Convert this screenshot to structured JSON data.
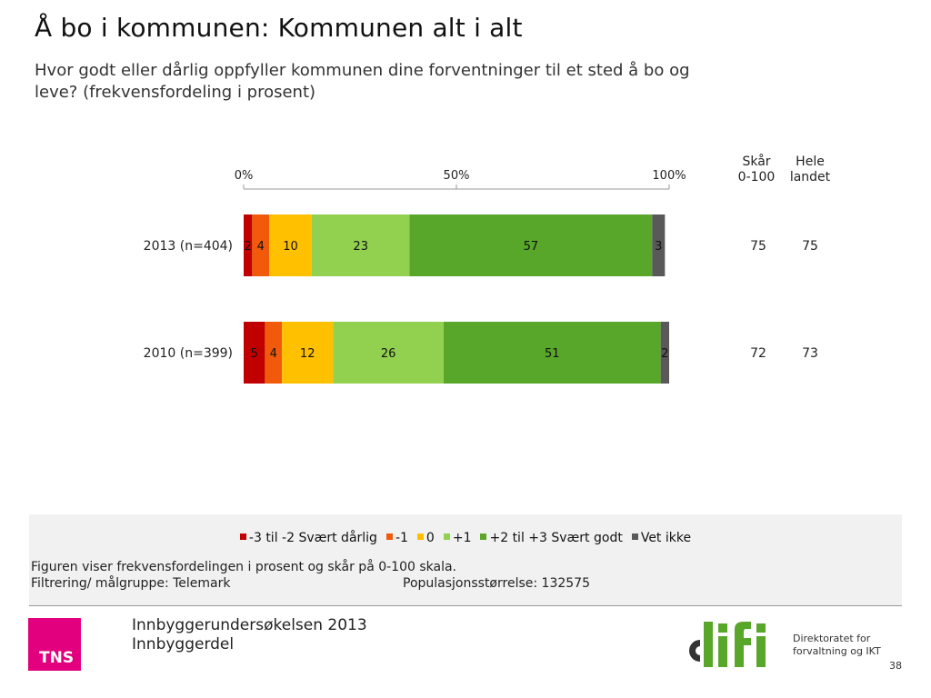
{
  "title": "Å bo i kommunen: Kommunen alt i alt",
  "subtitle": "Hvor godt eller dårlig oppfyller kommunen dine forventninger til et sted å bo og leve? (frekvensfordeling i prosent)",
  "score_header": [
    "Skår",
    "0-100"
  ],
  "national_header": [
    "Hele",
    "landet"
  ],
  "chart_data": {
    "type": "bar",
    "orientation": "horizontal",
    "stacked": true,
    "xlim": [
      0,
      100
    ],
    "ticks": [
      "0%",
      "50%",
      "100%"
    ],
    "categories": [
      "2013 (n=404)",
      "2010 (n=399)"
    ],
    "series": [
      {
        "name": "-3 til -2 Svært dårlig",
        "color": "#c00000",
        "values": [
          2,
          5
        ]
      },
      {
        "name": "-1",
        "color": "#f05a0a",
        "values": [
          4,
          4
        ]
      },
      {
        "name": "0",
        "color": "#ffc000",
        "values": [
          10,
          12
        ]
      },
      {
        "name": "+1",
        "color": "#92d050",
        "values": [
          23,
          26
        ]
      },
      {
        "name": "+2 til +3 Svært godt",
        "color": "#58a72a",
        "values": [
          57,
          51
        ]
      },
      {
        "name": "Vet ikke",
        "color": "#595959",
        "values": [
          3,
          2
        ]
      }
    ],
    "scores": [
      75,
      72
    ],
    "national": [
      75,
      73
    ]
  },
  "notes": {
    "description": "Figuren viser frekvensfordelingen i prosent og skår på 0-100 skala.",
    "filter": "Filtrering/ målgruppe: Telemark",
    "population": "Populasjonsstørrelse: 132575"
  },
  "footer": {
    "line1": "Innbyggerundersøkelsen 2013",
    "line2": "Innbyggerdel",
    "tns": "TNS",
    "difi_line1": "Direktoratet for",
    "difi_line2": "forvaltning og IKT",
    "page": "38"
  }
}
